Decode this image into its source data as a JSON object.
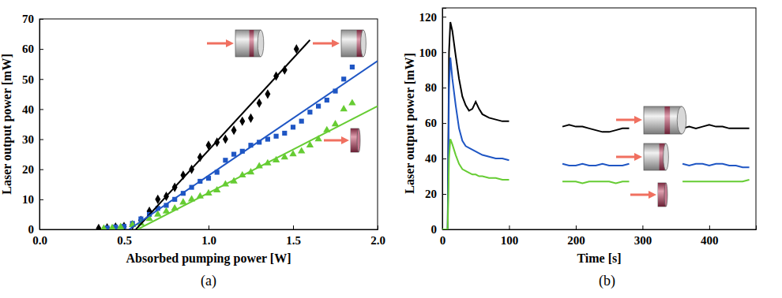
{
  "chart_data": [
    {
      "type": "scatter",
      "title": "(a)",
      "x_label": "Absorbed pumping power [W]",
      "y_label": "Laser output power [mW]",
      "xlim": [
        0,
        2
      ],
      "xticks": [
        {
          "value": 0,
          "label": "0.0"
        },
        0.5,
        {
          "value": 1,
          "label": "1.0"
        },
        1.5,
        {
          "value": 2,
          "label": "2.0"
        }
      ],
      "ylim": [
        0,
        70
      ],
      "yticks": [
        0,
        10,
        20,
        30,
        40,
        50,
        60,
        70
      ],
      "series": [
        {
          "type": "scatter",
          "color": "#000000",
          "marker": "diamond",
          "x": [
            0.35,
            0.4,
            0.45,
            0.5,
            0.55,
            0.6,
            0.65,
            0.7,
            0.75,
            0.8,
            0.85,
            0.9,
            0.95,
            1.0,
            1.05,
            1.1,
            1.15,
            1.2,
            1.25,
            1.3,
            1.35,
            1.4,
            1.45,
            1.52
          ],
          "values": [
            0.3,
            0.5,
            0.8,
            1,
            1.5,
            3,
            6,
            10,
            11,
            14,
            18,
            20,
            24,
            28,
            29,
            30,
            33,
            36,
            37,
            42,
            45,
            51,
            53,
            60
          ]
        },
        {
          "type": "scatter",
          "color": "#1f56c4",
          "marker": "square",
          "x": [
            0.4,
            0.45,
            0.5,
            0.55,
            0.6,
            0.65,
            0.7,
            0.75,
            0.8,
            0.85,
            0.9,
            0.95,
            1.0,
            1.05,
            1.1,
            1.15,
            1.2,
            1.25,
            1.3,
            1.35,
            1.4,
            1.45,
            1.5,
            1.55,
            1.6,
            1.65,
            1.7,
            1.75,
            1.8,
            1.85
          ],
          "values": [
            0.5,
            0.8,
            1,
            2,
            3.5,
            5,
            7,
            8,
            10,
            12,
            14,
            16,
            17,
            19,
            23,
            25,
            26,
            28,
            29,
            30,
            31,
            32,
            34,
            36,
            39,
            41,
            43,
            46,
            50,
            54
          ]
        },
        {
          "type": "scatter",
          "color": "#66cc33",
          "marker": "triangle",
          "x": [
            0.38,
            0.43,
            0.48,
            0.55,
            0.6,
            0.65,
            0.7,
            0.75,
            0.8,
            0.85,
            0.9,
            0.95,
            1.0,
            1.05,
            1.1,
            1.15,
            1.2,
            1.25,
            1.3,
            1.35,
            1.4,
            1.45,
            1.5,
            1.55,
            1.6,
            1.65,
            1.7,
            1.75,
            1.8,
            1.85
          ],
          "values": [
            0.3,
            0.5,
            0.8,
            1.5,
            2,
            3.5,
            5,
            6,
            7,
            9,
            10,
            11,
            12,
            13,
            15,
            16,
            18,
            19,
            21,
            22,
            23,
            24,
            25,
            26,
            28,
            30,
            33,
            35,
            40,
            42
          ]
        },
        {
          "type": "line",
          "color": "#000000",
          "line_style": "solid",
          "x": [
            0.57,
            1.6
          ],
          "values": [
            0,
            63
          ]
        },
        {
          "type": "line",
          "color": "#1f56c4",
          "line_style": "solid",
          "x": [
            0.53,
            2.0
          ],
          "values": [
            0,
            56
          ]
        },
        {
          "type": "line",
          "color": "#66cc33",
          "line_style": "solid",
          "x": [
            0.58,
            2.0
          ],
          "values": [
            0,
            41
          ]
        }
      ]
    },
    {
      "type": "line",
      "title": "(b)",
      "x_label": "Time [s]",
      "y_label": "Laser output power [mW]",
      "xlim": [
        0,
        470
      ],
      "xticks": [
        0,
        100,
        200,
        300,
        400
      ],
      "ylim": [
        0,
        125
      ],
      "yticks": [
        0,
        20,
        40,
        60,
        80,
        100,
        120
      ],
      "x": [
        0,
        5,
        8,
        10,
        12,
        15,
        20,
        25,
        30,
        35,
        40,
        45,
        50,
        55,
        60,
        70,
        80,
        90,
        100,
        140,
        180,
        190,
        200,
        210,
        220,
        230,
        240,
        250,
        260,
        270,
        280,
        320,
        360,
        370,
        380,
        390,
        400,
        410,
        420,
        430,
        440,
        450,
        460
      ],
      "series": [
        {
          "color": "#000000",
          "line_style": "solid",
          "values": [
            0,
            0,
            0,
            100,
            117,
            112,
            98,
            85,
            75,
            70,
            67,
            68,
            72,
            68,
            65,
            63,
            62,
            61,
            61,
            null,
            58,
            59,
            58,
            58,
            57,
            56,
            55,
            55,
            56,
            57,
            57,
            null,
            57,
            58,
            57,
            58,
            59,
            58,
            58,
            57,
            57,
            57,
            57
          ]
        },
        {
          "color": "#1f56c4",
          "line_style": "solid",
          "values": [
            0,
            0,
            0,
            80,
            97,
            85,
            70,
            57,
            50,
            47,
            46,
            45,
            44,
            43,
            42,
            41,
            40,
            40,
            39,
            null,
            37,
            36,
            36,
            37,
            36,
            36,
            37,
            36,
            36,
            36,
            37,
            null,
            37,
            36,
            37,
            37,
            36,
            37,
            37,
            36,
            36,
            35,
            35
          ]
        },
        {
          "color": "#66cc33",
          "line_style": "solid",
          "values": [
            0,
            0,
            0,
            40,
            51,
            48,
            42,
            37,
            34,
            33,
            32,
            31,
            31,
            30,
            30,
            29,
            29,
            28,
            28,
            null,
            27,
            27,
            27,
            26,
            27,
            27,
            27,
            27,
            26,
            27,
            27,
            null,
            27,
            27,
            27,
            27,
            27,
            27,
            27,
            27,
            27,
            27,
            28
          ]
        }
      ]
    }
  ]
}
